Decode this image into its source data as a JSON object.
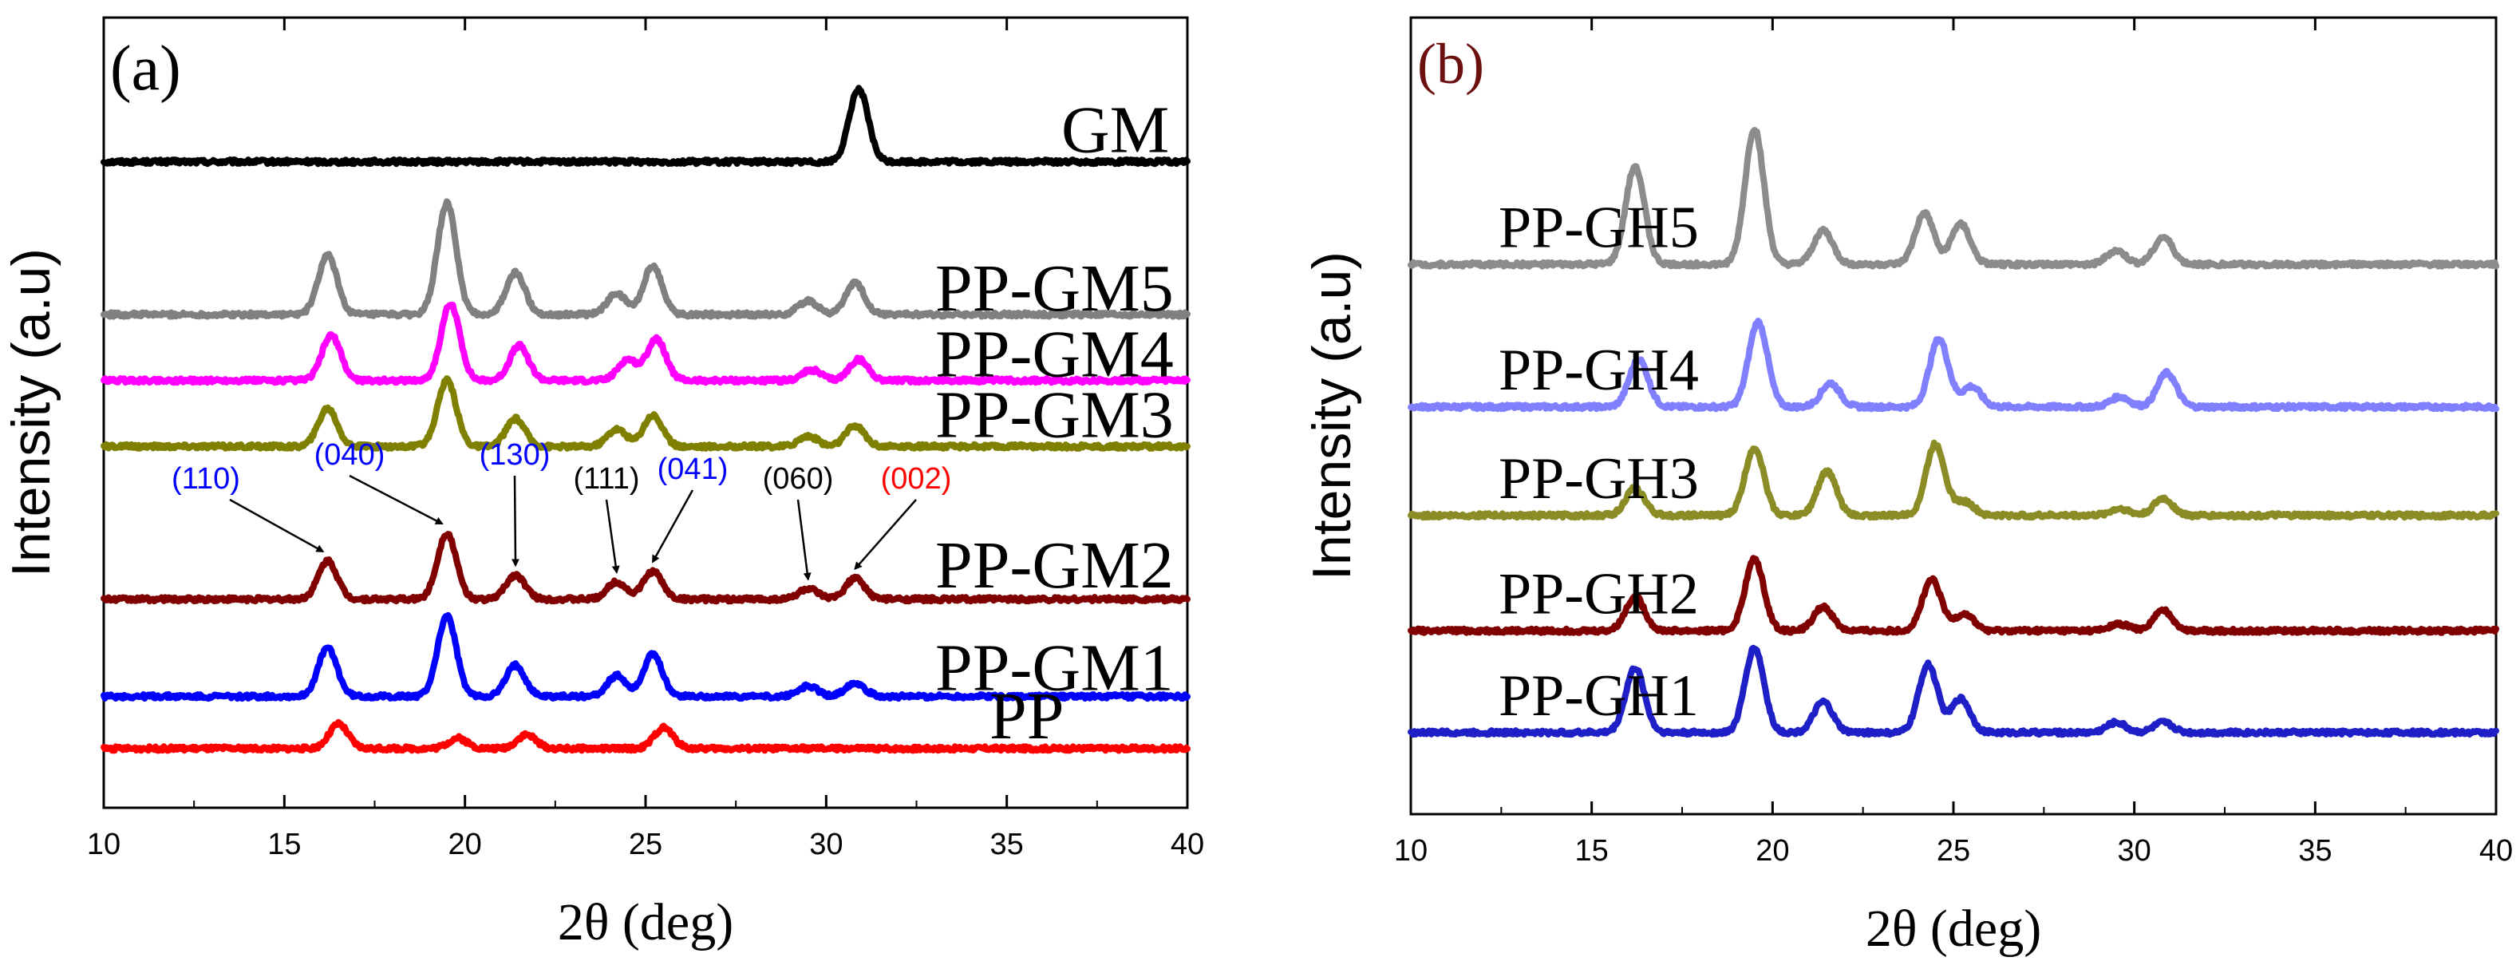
{
  "figure": {
    "panels": [
      {
        "id": "a",
        "panel_label": "(a)",
        "panel_label_color": "#000000",
        "xlabel": "2θ (deg)",
        "ylabel": "Intensity (a.u)",
        "xlim": [
          10,
          40
        ],
        "xticks": [
          "10",
          "15",
          "20",
          "25",
          "30",
          "35",
          "40"
        ]
      },
      {
        "id": "b",
        "panel_label": "(b)",
        "panel_label_color": "#6b0f0f",
        "xlabel": "2θ (deg)",
        "ylabel": "Intensity (a.u)",
        "xlim": [
          10,
          40
        ],
        "xticks": [
          "10",
          "15",
          "20",
          "25",
          "30",
          "35",
          "40"
        ]
      }
    ]
  },
  "chart_data": [
    {
      "type": "line",
      "title": "(a)",
      "xlabel": "2θ (deg)",
      "ylabel": "Intensity (a.u)",
      "xlim": [
        10,
        40
      ],
      "ylim": [
        0,
        1
      ],
      "series": [
        {
          "name": "GM",
          "color": "#000000",
          "baseline": 0.905,
          "peaks": [
            [
              30.9,
              0.105
            ]
          ]
        },
        {
          "name": "PP-GM5",
          "color": "#808080",
          "baseline": 0.685,
          "peaks": [
            [
              16.2,
              0.085
            ],
            [
              19.5,
              0.16
            ],
            [
              21.4,
              0.06
            ],
            [
              24.2,
              0.03
            ],
            [
              25.2,
              0.07
            ],
            [
              29.5,
              0.02
            ],
            [
              30.8,
              0.045
            ]
          ]
        },
        {
          "name": "PP-GM4",
          "color": "#ff00ff",
          "baseline": 0.59,
          "peaks": [
            [
              16.3,
              0.065
            ],
            [
              19.6,
              0.11
            ],
            [
              21.5,
              0.05
            ],
            [
              24.5,
              0.03
            ],
            [
              25.3,
              0.06
            ],
            [
              29.6,
              0.015
            ],
            [
              30.9,
              0.03
            ]
          ]
        },
        {
          "name": "PP-GM3",
          "color": "#808000",
          "baseline": 0.495,
          "peaks": [
            [
              16.2,
              0.055
            ],
            [
              19.5,
              0.095
            ],
            [
              21.4,
              0.04
            ],
            [
              24.2,
              0.025
            ],
            [
              25.2,
              0.045
            ],
            [
              29.5,
              0.015
            ],
            [
              30.8,
              0.03
            ]
          ]
        },
        {
          "name": "PP-GM2",
          "color": "#800000",
          "baseline": 0.275,
          "peaks": [
            [
              16.2,
              0.055
            ],
            [
              19.5,
              0.095
            ],
            [
              21.4,
              0.035
            ],
            [
              24.2,
              0.025
            ],
            [
              25.2,
              0.04
            ],
            [
              29.5,
              0.015
            ],
            [
              30.8,
              0.03
            ]
          ]
        },
        {
          "name": "PP-GM1",
          "color": "#0000ff",
          "baseline": 0.135,
          "peaks": [
            [
              16.2,
              0.07
            ],
            [
              19.5,
              0.115
            ],
            [
              21.4,
              0.045
            ],
            [
              24.2,
              0.03
            ],
            [
              25.2,
              0.06
            ],
            [
              29.5,
              0.015
            ],
            [
              30.8,
              0.02
            ]
          ]
        },
        {
          "name": "PP",
          "color": "#ff0000",
          "baseline": 0.06,
          "peaks": [
            [
              16.5,
              0.035
            ],
            [
              19.8,
              0.015
            ],
            [
              21.7,
              0.02
            ],
            [
              25.5,
              0.03
            ]
          ]
        }
      ],
      "annotations": [
        {
          "text": "(110)",
          "color": "#0000ff",
          "x": 16.2,
          "series": "PP-GM2"
        },
        {
          "text": "(040)",
          "color": "#0000ff",
          "x": 19.5,
          "series": "PP-GM2"
        },
        {
          "text": "(130)",
          "color": "#0000ff",
          "x": 21.4,
          "series": "PP-GM2"
        },
        {
          "text": "(111)",
          "color": "#000000",
          "x": 24.2,
          "series": "PP-GM2"
        },
        {
          "text": "(041)",
          "color": "#0000ff",
          "x": 25.2,
          "series": "PP-GM2"
        },
        {
          "text": "(060)",
          "color": "#000000",
          "x": 29.5,
          "series": "PP-GM2"
        },
        {
          "text": "(002)",
          "color": "#ff0000",
          "x": 30.8,
          "series": "PP-GM2"
        }
      ]
    },
    {
      "type": "line",
      "title": "(b)",
      "xlabel": "2θ (deg)",
      "ylabel": "Intensity (a.u)",
      "xlim": [
        10,
        40
      ],
      "ylim": [
        0,
        1
      ],
      "series": [
        {
          "name": "PP-GH5",
          "color": "#8c8c8c",
          "baseline": 0.775,
          "peaks": [
            [
              16.2,
              0.145
            ],
            [
              19.5,
              0.2
            ],
            [
              21.4,
              0.05
            ],
            [
              24.2,
              0.075
            ],
            [
              25.2,
              0.06
            ],
            [
              29.5,
              0.02
            ],
            [
              30.8,
              0.04
            ]
          ]
        },
        {
          "name": "PP-GH4",
          "color": "#8080ff",
          "baseline": 0.565,
          "peaks": [
            [
              16.3,
              0.07
            ],
            [
              19.6,
              0.125
            ],
            [
              21.6,
              0.035
            ],
            [
              24.6,
              0.1
            ],
            [
              25.5,
              0.03
            ],
            [
              29.6,
              0.015
            ],
            [
              30.9,
              0.05
            ]
          ]
        },
        {
          "name": "PP-GH3",
          "color": "#8c8c26",
          "baseline": 0.405,
          "peaks": [
            [
              16.2,
              0.04
            ],
            [
              19.5,
              0.1
            ],
            [
              21.5,
              0.065
            ],
            [
              24.5,
              0.105
            ],
            [
              25.3,
              0.02
            ],
            [
              29.6,
              0.01
            ],
            [
              30.8,
              0.025
            ]
          ]
        },
        {
          "name": "PP-GH2",
          "color": "#800000",
          "baseline": 0.235,
          "peaks": [
            [
              16.2,
              0.05
            ],
            [
              19.5,
              0.105
            ],
            [
              21.4,
              0.035
            ],
            [
              24.4,
              0.075
            ],
            [
              25.3,
              0.025
            ],
            [
              29.6,
              0.01
            ],
            [
              30.8,
              0.03
            ]
          ]
        },
        {
          "name": "PP-GH1",
          "color": "#1f1fc8",
          "baseline": 0.085,
          "peaks": [
            [
              16.2,
              0.095
            ],
            [
              19.5,
              0.125
            ],
            [
              21.4,
              0.045
            ],
            [
              24.3,
              0.1
            ],
            [
              25.2,
              0.05
            ],
            [
              29.5,
              0.015
            ],
            [
              30.8,
              0.015
            ]
          ]
        }
      ],
      "annotations": []
    }
  ]
}
